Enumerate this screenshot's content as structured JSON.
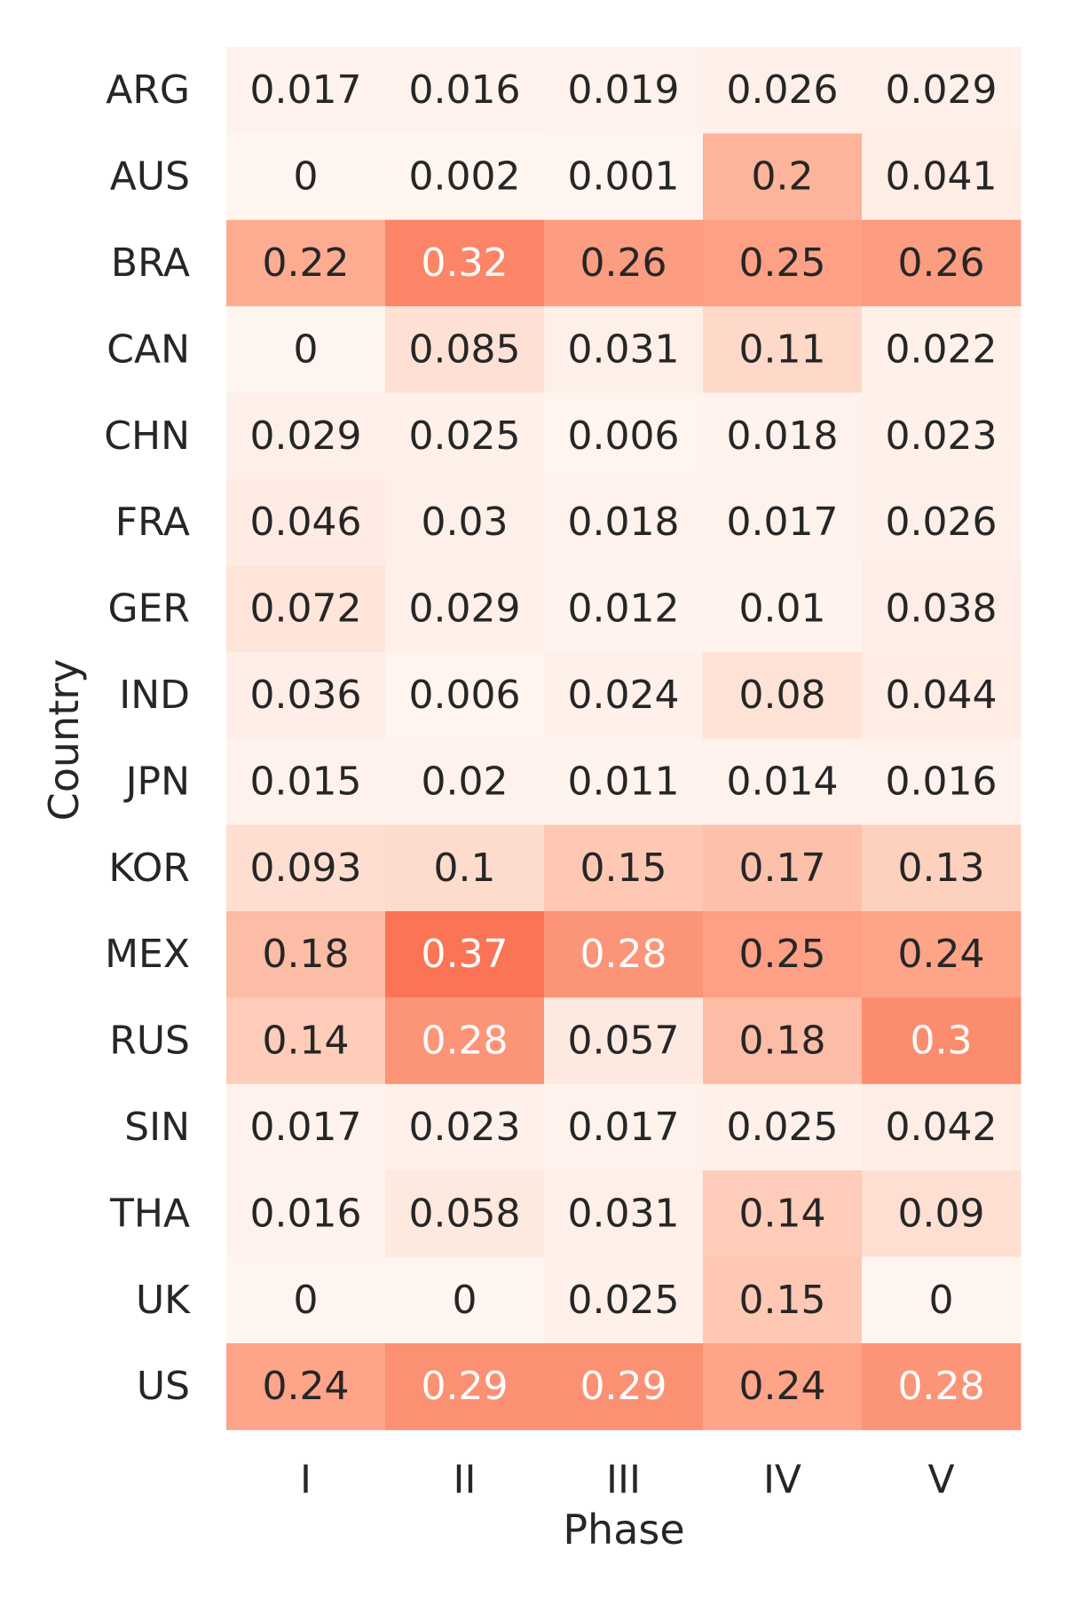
{
  "chart_data": {
    "type": "heatmap",
    "xlabel": "Phase",
    "ylabel": "Country",
    "x_categories": [
      "I",
      "II",
      "III",
      "IV",
      "V"
    ],
    "y_categories": [
      "ARG",
      "AUS",
      "BRA",
      "CAN",
      "CHN",
      "FRA",
      "GER",
      "IND",
      "JPN",
      "KOR",
      "MEX",
      "RUS",
      "SIN",
      "THA",
      "UK",
      "US"
    ],
    "values": [
      [
        0.017,
        0.016,
        0.019,
        0.026,
        0.029
      ],
      [
        0,
        0.002,
        0.001,
        0.2,
        0.041
      ],
      [
        0.22,
        0.32,
        0.26,
        0.25,
        0.26
      ],
      [
        0,
        0.085,
        0.031,
        0.11,
        0.022
      ],
      [
        0.029,
        0.025,
        0.006,
        0.018,
        0.023
      ],
      [
        0.046,
        0.03,
        0.018,
        0.017,
        0.026
      ],
      [
        0.072,
        0.029,
        0.012,
        0.01,
        0.038
      ],
      [
        0.036,
        0.006,
        0.024,
        0.08,
        0.044
      ],
      [
        0.015,
        0.02,
        0.011,
        0.014,
        0.016
      ],
      [
        0.093,
        0.1,
        0.15,
        0.17,
        0.13
      ],
      [
        0.18,
        0.37,
        0.28,
        0.25,
        0.24
      ],
      [
        0.14,
        0.28,
        0.057,
        0.18,
        0.3
      ],
      [
        0.017,
        0.023,
        0.017,
        0.025,
        0.042
      ],
      [
        0.016,
        0.058,
        0.031,
        0.14,
        0.09
      ],
      [
        0,
        0,
        0.025,
        0.15,
        0
      ],
      [
        0.24,
        0.29,
        0.29,
        0.24,
        0.28
      ]
    ],
    "color_range": [
      0,
      1
    ],
    "colormap": "Reds",
    "colors": {
      "low": "#fff5f0",
      "high": "#fb6a4a",
      "text_dark": "#262626",
      "text_light": "#ffffff"
    },
    "grid": false,
    "legend": "none"
  }
}
